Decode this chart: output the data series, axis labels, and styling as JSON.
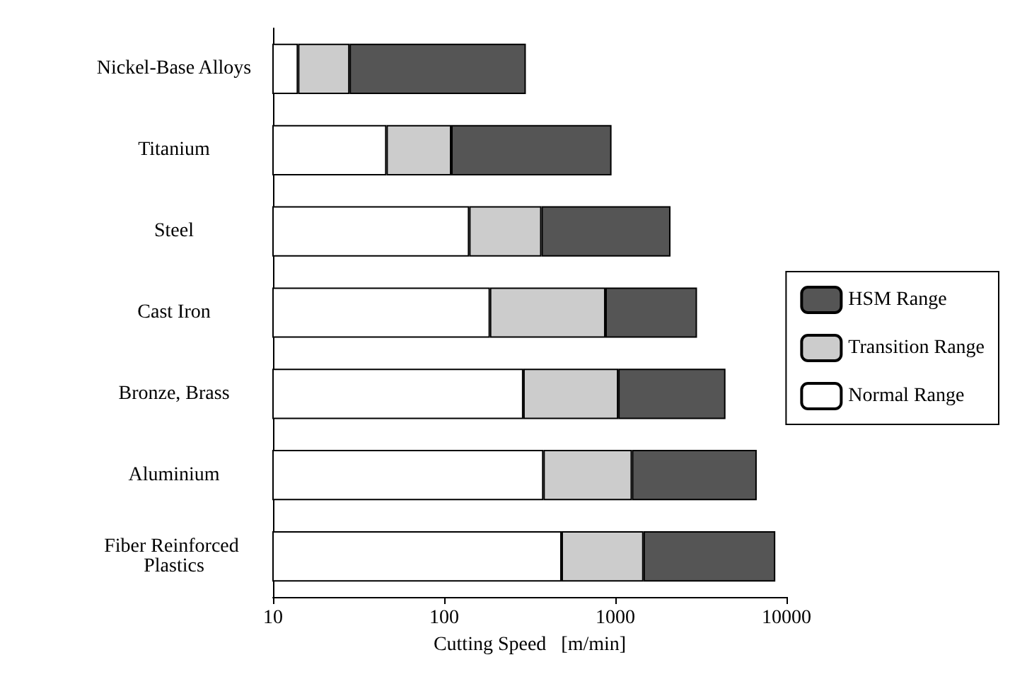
{
  "chart_data": {
    "type": "bar",
    "orientation": "horizontal",
    "stacked": true,
    "log": "x",
    "xlabel": "Cutting Speed   [m/min]",
    "categories": [
      "Nickel-Base Alloys",
      "Titanium",
      "Steel",
      "Cast Iron",
      "Bronze, Brass",
      "Aluminium",
      "Fiber Reinforced Plastics"
    ],
    "series": [
      {
        "name": "Normal Range",
        "color": "#ffffff",
        "values": [
          14,
          46,
          140,
          185,
          290,
          380,
          485
        ]
      },
      {
        "name": "Transition Range",
        "color": "#cccccc",
        "values": [
          14,
          64,
          230,
          690,
          750,
          870,
          975
        ]
      },
      {
        "name": "HSM Range",
        "color": "#555555",
        "values": [
          272,
          840,
          1730,
          2125,
          3360,
          5450,
          7140
        ]
      }
    ],
    "xlim": [
      10,
      10000
    ],
    "xticks": [
      10,
      100,
      1000,
      10000
    ],
    "grid": false,
    "legend": "right"
  }
}
